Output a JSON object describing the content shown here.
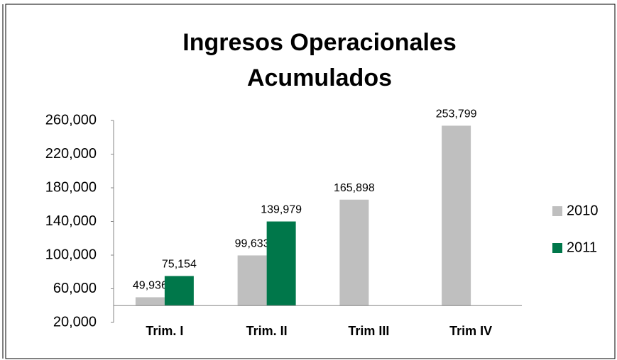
{
  "chart_data": {
    "type": "bar",
    "title": "Ingresos Operacionales Acumulados",
    "categories": [
      "Trim. I",
      "Trim. II",
      "Trim III",
      "Trim IV"
    ],
    "series": [
      {
        "name": "2010",
        "color": "#bfbfbf",
        "values": [
          49936,
          99633,
          165898,
          253799
        ],
        "value_labels": [
          "49,936",
          "99,633",
          "165,898",
          "253,799"
        ]
      },
      {
        "name": "2011",
        "color": "#00774a",
        "values": [
          75154,
          139979,
          null,
          null
        ],
        "value_labels": [
          "75,154",
          "139,979",
          null,
          null
        ]
      }
    ],
    "ylim": [
      20000,
      260000
    ],
    "yticks": [
      {
        "value": 20000,
        "label": "20,000"
      },
      {
        "value": 60000,
        "label": "60,000"
      },
      {
        "value": 100000,
        "label": "100,000"
      },
      {
        "value": 140000,
        "label": "140,000"
      },
      {
        "value": 180000,
        "label": "180,000"
      },
      {
        "value": 220000,
        "label": "220,000"
      },
      {
        "value": 260000,
        "label": "260,000"
      }
    ],
    "xaxis_at": 40000,
    "grid": false,
    "legend": "right"
  }
}
